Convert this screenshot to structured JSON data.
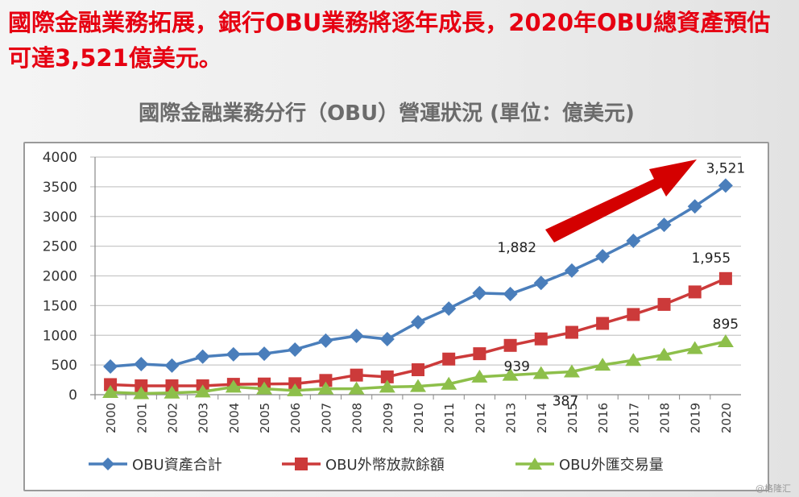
{
  "slide": {
    "headline": "國際金融業務拓展，銀行OBU業務將逐年成長，2020年OBU總資產預估可達3,521億美元。",
    "watermark": "@格隆汇"
  },
  "chart_data": {
    "type": "line",
    "title": "國際金融業務分行（OBU）營運狀況  (單位：億美元)",
    "categories": [
      "2000",
      "2001",
      "2002",
      "2003",
      "2004",
      "2005",
      "2006",
      "2007",
      "2008",
      "2009",
      "2010",
      "2011",
      "2012",
      "2013",
      "2014",
      "2015",
      "2016",
      "2017",
      "2018",
      "2019",
      "2020"
    ],
    "ylim": [
      0,
      4000
    ],
    "yticks": [
      0,
      500,
      1000,
      1500,
      2000,
      2500,
      3000,
      3500,
      4000
    ],
    "grid": true,
    "legend": "bottom",
    "series": [
      {
        "name": "OBU資產合計",
        "color": "#4a7ebb",
        "marker": "diamond",
        "values": [
          475,
          515,
          490,
          640,
          680,
          690,
          760,
          910,
          990,
          935,
          1220,
          1450,
          1710,
          1695,
          1882,
          2090,
          2330,
          2590,
          2860,
          3170,
          3521
        ]
      },
      {
        "name": "OBU外幣放款餘額",
        "color": "#cc3a3a",
        "marker": "square",
        "values": [
          170,
          150,
          150,
          150,
          175,
          180,
          185,
          240,
          330,
          300,
          420,
          600,
          690,
          830,
          939,
          1050,
          1200,
          1350,
          1520,
          1730,
          1955
        ]
      },
      {
        "name": "OBU外匯交易量",
        "color": "#8dbf4a",
        "marker": "triangle",
        "values": [
          40,
          20,
          30,
          50,
          130,
          100,
          70,
          100,
          100,
          130,
          140,
          180,
          300,
          330,
          360,
          387,
          500,
          580,
          670,
          780,
          895
        ]
      }
    ],
    "annotations": [
      {
        "text": "3,521",
        "series": 0,
        "category": "2020"
      },
      {
        "text": "1,882",
        "series": 0,
        "category": "2014"
      },
      {
        "text": "1,955",
        "series": 1,
        "category": "2020"
      },
      {
        "text": "939",
        "series": 1,
        "category": "2014"
      },
      {
        "text": "895",
        "series": 2,
        "category": "2020"
      },
      {
        "text": "387",
        "series": 2,
        "category": "2015"
      }
    ],
    "arrow_color": "#d40000"
  }
}
